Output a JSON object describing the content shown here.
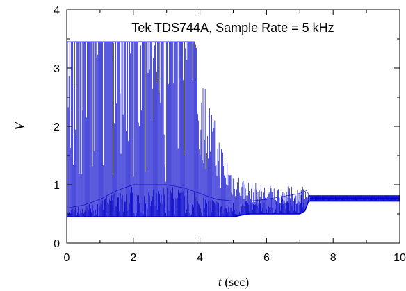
{
  "chart_data": {
    "type": "line",
    "title": "",
    "annotation": "Tek TDS744A, Sample Rate = 5 kHz",
    "xlabel_var": "t",
    "xlabel_unit": " (sec)",
    "ylabel": "V",
    "xlim": [
      0,
      10
    ],
    "ylim": [
      0,
      4
    ],
    "x_ticks": [
      0,
      2,
      4,
      6,
      8,
      10
    ],
    "x_tick_labels": [
      "0",
      "2",
      "4",
      "6",
      "8",
      "10"
    ],
    "y_ticks": [
      0,
      1,
      2,
      3,
      4
    ],
    "y_tick_labels": [
      "0",
      "1",
      "2",
      "3",
      "4"
    ],
    "grid": false,
    "series": [
      {
        "color": "#0000cc",
        "envelope": {
          "x": [
            0,
            0.5,
            1.0,
            1.5,
            2.0,
            2.5,
            3.0,
            3.5,
            3.85,
            4.0,
            4.25,
            4.5,
            4.75,
            5.0,
            5.25,
            5.5,
            6.0,
            6.5,
            7.0,
            7.15,
            7.25,
            7.3,
            8.0,
            9.0,
            10.0
          ],
          "high": [
            3.45,
            3.45,
            3.45,
            3.45,
            3.45,
            3.45,
            3.45,
            3.45,
            3.45,
            3.1,
            2.6,
            2.0,
            1.6,
            1.3,
            1.15,
            1.05,
            1.0,
            0.97,
            0.97,
            1.05,
            0.85,
            0.82,
            0.82,
            0.82,
            0.82
          ],
          "low": [
            0.45,
            0.45,
            0.45,
            0.45,
            0.45,
            0.45,
            0.45,
            0.45,
            0.45,
            0.45,
            0.45,
            0.45,
            0.45,
            0.45,
            0.48,
            0.5,
            0.5,
            0.5,
            0.5,
            0.55,
            0.7,
            0.72,
            0.72,
            0.72,
            0.72
          ]
        },
        "band": {
          "x": [
            0,
            0.5,
            1.0,
            1.5,
            2.0,
            2.5,
            3.0,
            3.5,
            4.0,
            4.5,
            5.0,
            5.5,
            6.0,
            6.5,
            7.0,
            7.2,
            7.3,
            8.0,
            10.0
          ],
          "high": [
            0.6,
            0.65,
            0.75,
            0.9,
            1.0,
            1.0,
            1.0,
            0.95,
            0.85,
            0.75,
            0.72,
            0.72,
            0.75,
            0.8,
            0.85,
            0.9,
            0.8,
            0.8,
            0.8
          ],
          "low": [
            0.45,
            0.45,
            0.5,
            0.5,
            0.5,
            0.5,
            0.5,
            0.5,
            0.5,
            0.5,
            0.5,
            0.5,
            0.5,
            0.5,
            0.52,
            0.6,
            0.72,
            0.72,
            0.72
          ]
        }
      }
    ]
  }
}
